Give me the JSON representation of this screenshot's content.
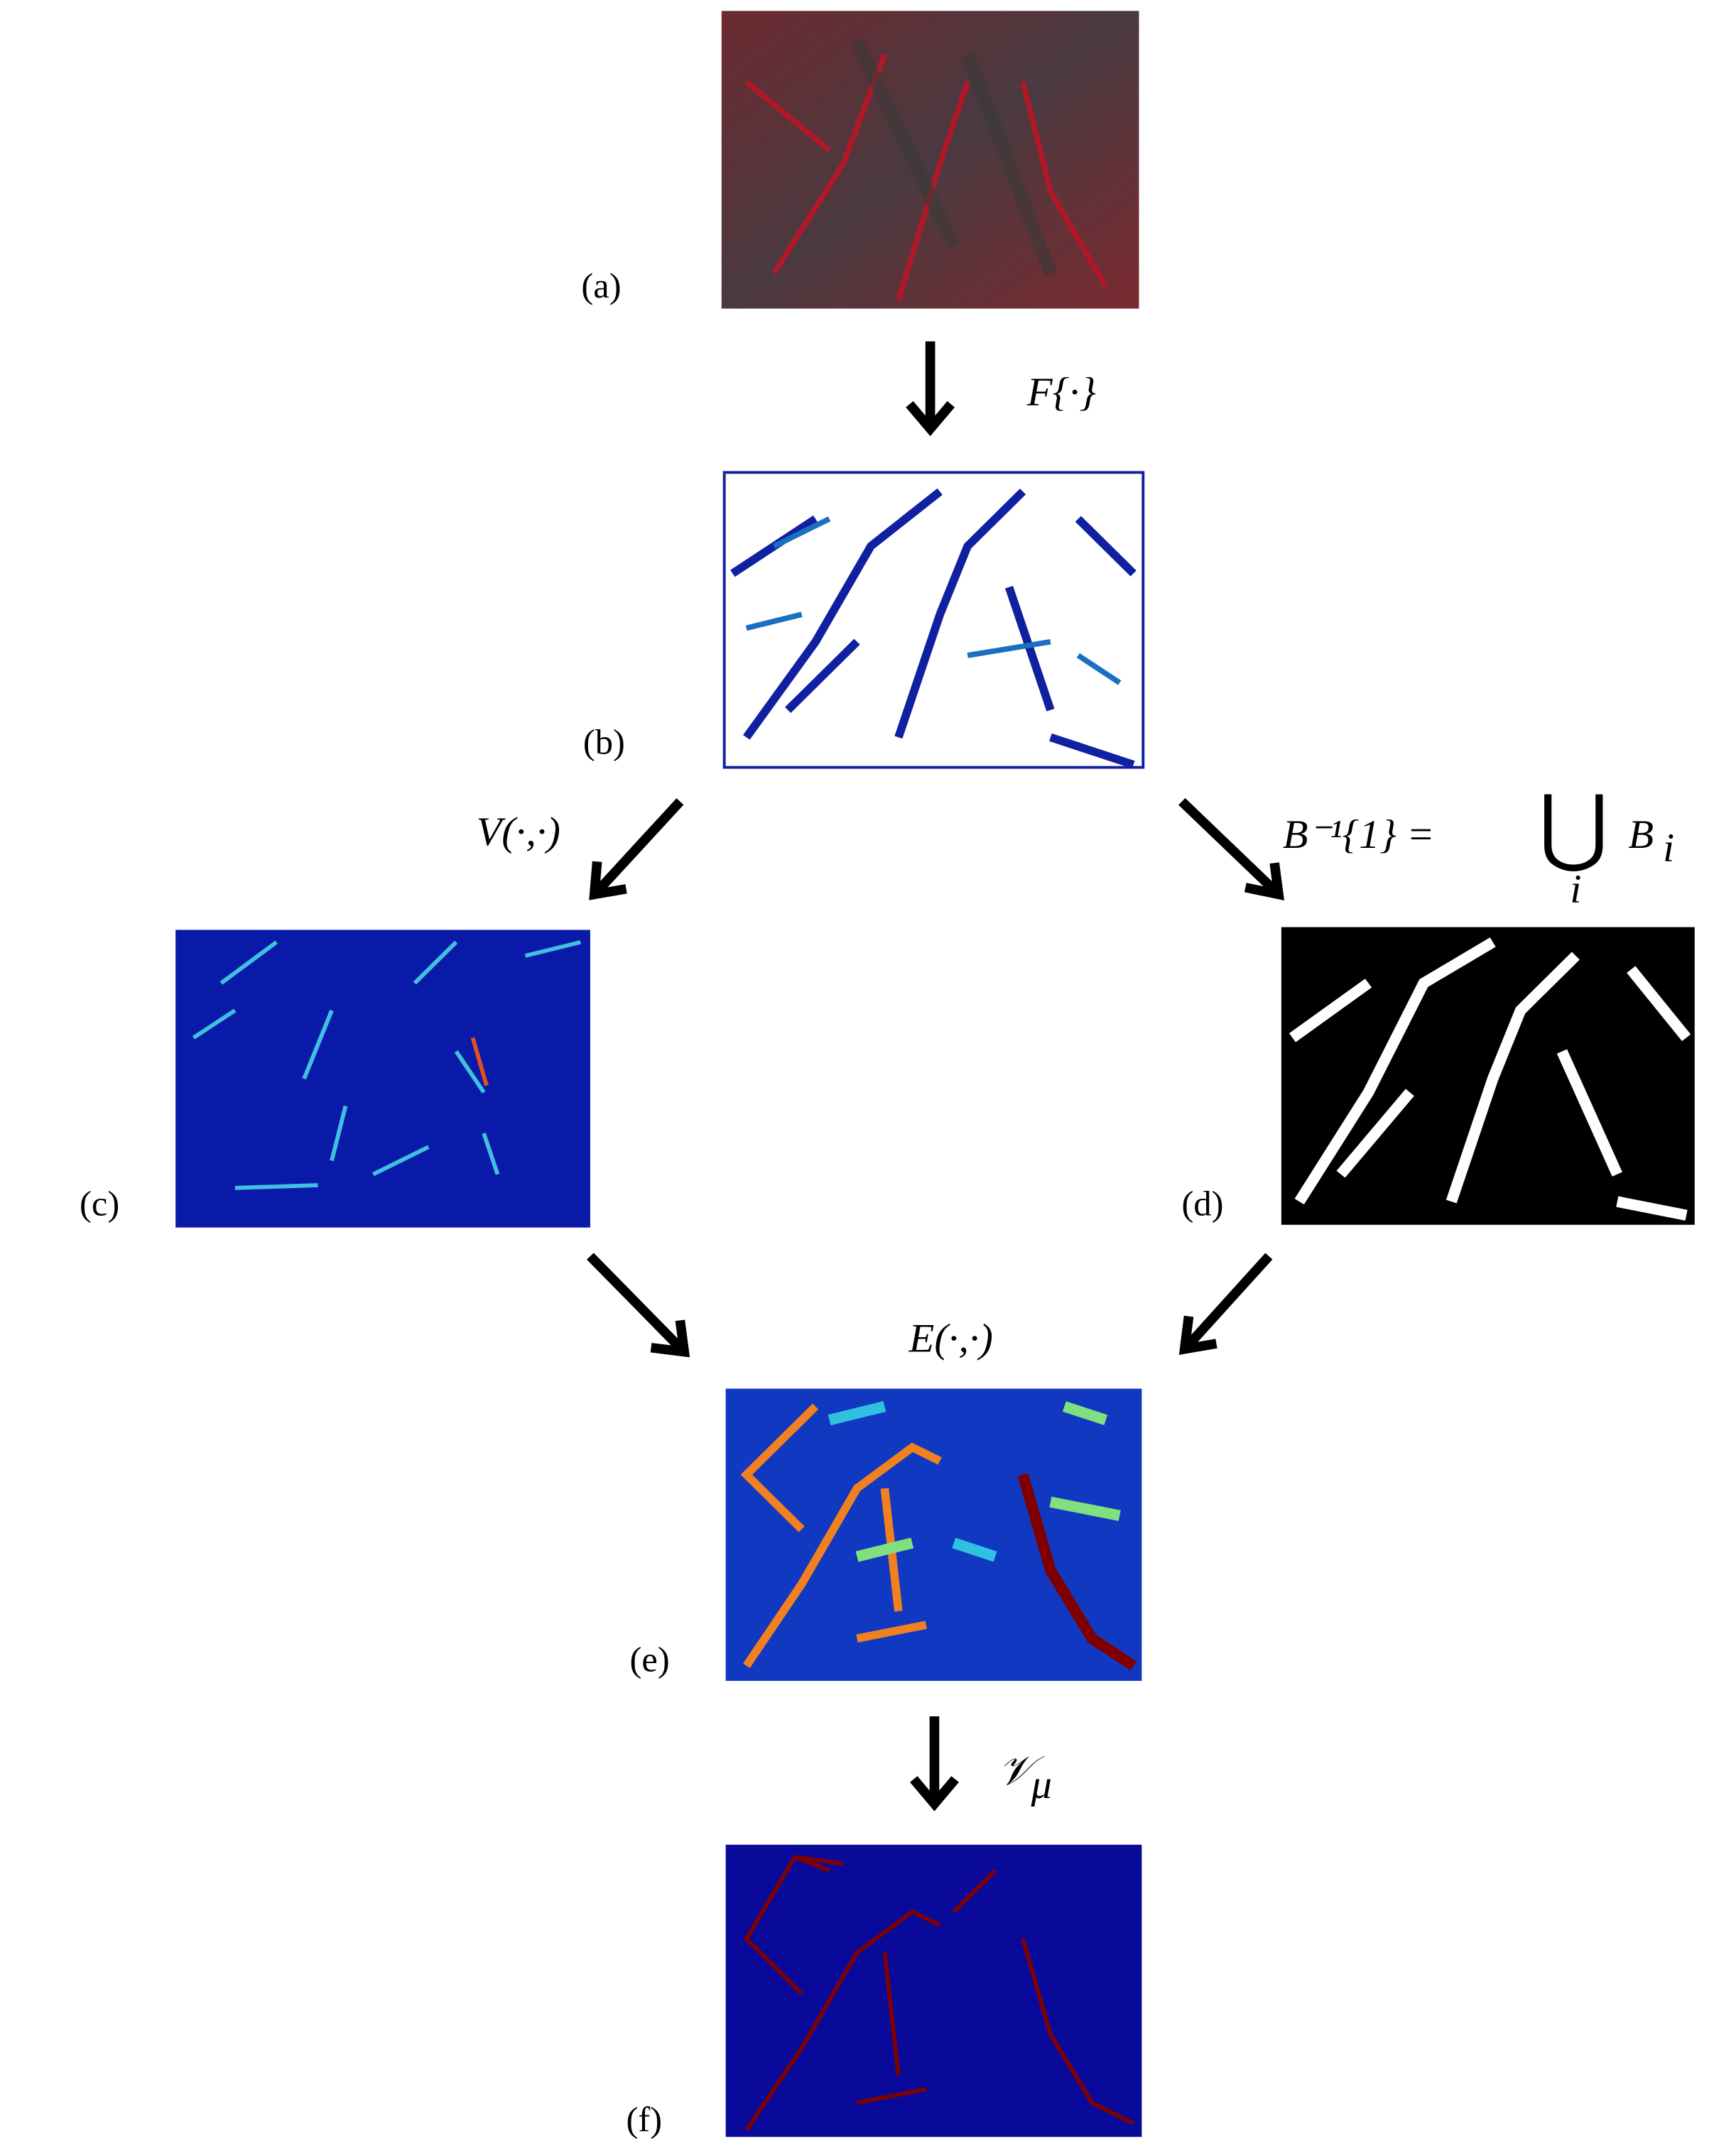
{
  "panels": [
    {
      "label": "(a)"
    },
    {
      "label": "(b)"
    },
    {
      "label": "(c)"
    },
    {
      "label": "(d)"
    },
    {
      "label": "(e)"
    },
    {
      "label": "(f)"
    }
  ],
  "operators": {
    "f": "F{·}",
    "v": "V(·,·)",
    "b": {
      "lhs": "B⁻¹{1} =",
      "union": "⋃",
      "union_index": "i",
      "rhs": "B",
      "rhs_subscript": "i"
    },
    "e": "E(·,·)",
    "vmu": {
      "symbol": "𝒱",
      "subscript": "μ"
    }
  }
}
